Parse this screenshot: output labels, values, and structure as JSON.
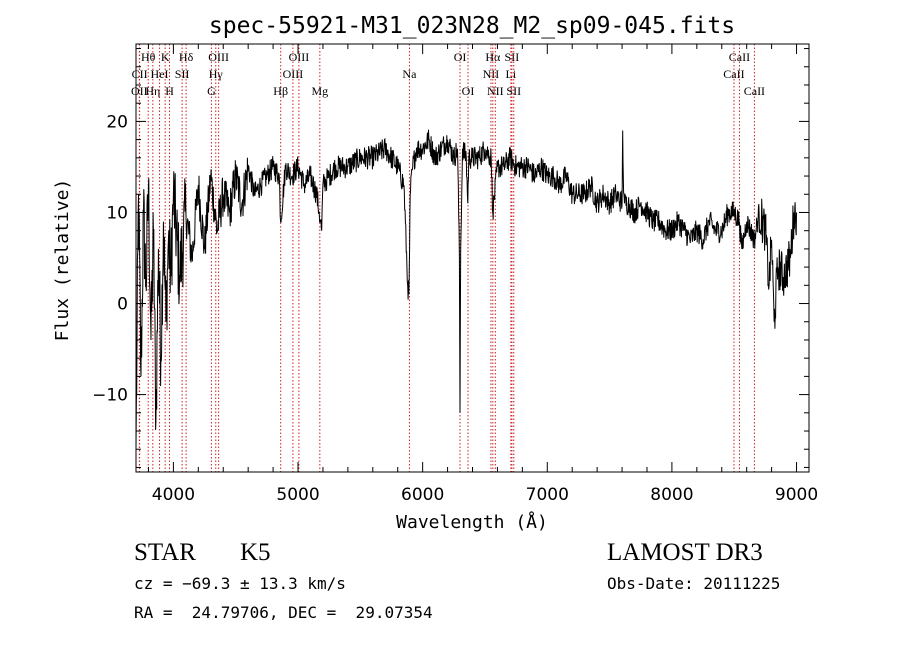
{
  "chart_data": {
    "type": "line",
    "title": "spec-55921-M31_023N28_M2_sp09-045.fits",
    "xlabel": "Wavelength (Å)",
    "ylabel": "Flux (relative)",
    "xlim": [
      3700,
      9100
    ],
    "ylim": [
      -18.5,
      28.5
    ],
    "x_ticks": [
      4000,
      5000,
      6000,
      7000,
      8000,
      9000
    ],
    "x_tick_labels": [
      "4000",
      "5000",
      "6000",
      "7000",
      "8000",
      "9000"
    ],
    "y_ticks": [
      -10,
      0,
      10,
      20
    ],
    "y_tick_labels": [
      "−10",
      "0",
      "10",
      "20"
    ],
    "series": [
      {
        "name": "flux",
        "x": [
          3700,
          3720,
          3740,
          3760,
          3780,
          3800,
          3820,
          3840,
          3860,
          3880,
          3900,
          3920,
          3940,
          3960,
          3980,
          4000,
          4050,
          4100,
          4150,
          4200,
          4250,
          4300,
          4350,
          4400,
          4450,
          4500,
          4550,
          4600,
          4650,
          4700,
          4750,
          4800,
          4850,
          4860,
          4900,
          4950,
          5000,
          5050,
          5100,
          5150,
          5170,
          5180,
          5190,
          5200,
          5250,
          5300,
          5400,
          5500,
          5600,
          5700,
          5800,
          5850,
          5880,
          5890,
          5895,
          5900,
          5920,
          5950,
          6000,
          6050,
          6100,
          6150,
          6200,
          6250,
          6280,
          6295,
          6300,
          6305,
          6320,
          6350,
          6362,
          6370,
          6400,
          6450,
          6500,
          6550,
          6563,
          6600,
          6650,
          6700,
          6750,
          6800,
          6850,
          6900,
          6950,
          7000,
          7050,
          7100,
          7150,
          7200,
          7250,
          7300,
          7350,
          7400,
          7450,
          7500,
          7550,
          7600,
          7605,
          7610,
          7615,
          7620,
          7650,
          7700,
          7750,
          7800,
          7850,
          7900,
          7950,
          8000,
          8050,
          8100,
          8150,
          8200,
          8250,
          8300,
          8350,
          8400,
          8450,
          8500,
          8542,
          8560,
          8600,
          8662,
          8700,
          8750,
          8780,
          8800,
          8820,
          8850,
          8900,
          8950,
          8980,
          9000
        ],
        "y": [
          -16,
          12,
          -8,
          10,
          2,
          13,
          -4,
          8,
          -13,
          6,
          -6,
          9,
          -2,
          7,
          3,
          12,
          3,
          10,
          5,
          13,
          6,
          14,
          8,
          12,
          10,
          14,
          11,
          15,
          12,
          13,
          14,
          15,
          14,
          9,
          15,
          14,
          15,
          13,
          14,
          12,
          10,
          9,
          8,
          13,
          14,
          15,
          15,
          16,
          16,
          17,
          15,
          13,
          2,
          1,
          6,
          12,
          15,
          17,
          17,
          18,
          16,
          17,
          18,
          16,
          17,
          5,
          -12,
          6,
          17,
          16,
          11,
          16,
          16,
          16,
          17,
          16,
          10,
          15,
          15,
          16,
          15,
          15,
          15,
          14,
          15,
          14,
          14,
          13,
          14,
          12,
          12,
          12,
          13,
          11,
          12,
          11,
          12,
          11,
          19,
          14,
          12,
          11,
          11,
          10,
          11,
          10,
          9,
          9,
          8,
          8,
          9,
          8,
          7,
          8,
          7,
          9,
          8,
          8,
          10,
          10,
          9,
          6,
          9,
          7,
          10,
          8,
          2,
          7,
          -2,
          4,
          3,
          5,
          10,
          10
        ]
      }
    ],
    "line_markers": [
      {
        "label": "Hθ",
        "x": 3798,
        "row": 0
      },
      {
        "label": "Hη",
        "x": 3835,
        "row": 2
      },
      {
        "label": "CII",
        "x": 3729,
        "row": 1
      },
      {
        "label": "OII",
        "x": 3727,
        "row": 2
      },
      {
        "label": "HeI",
        "x": 3889,
        "row": 1
      },
      {
        "label": "K",
        "x": 3934,
        "row": 0
      },
      {
        "label": "H",
        "x": 3969,
        "row": 2
      },
      {
        "label": "SII",
        "x": 4070,
        "row": 1
      },
      {
        "label": "Hδ",
        "x": 4102,
        "row": 0
      },
      {
        "label": "G",
        "x": 4305,
        "row": 2
      },
      {
        "label": "Hγ",
        "x": 4340,
        "row": 1
      },
      {
        "label": "OIII",
        "x": 4363,
        "row": 0
      },
      {
        "label": "Hβ",
        "x": 4861,
        "row": 2
      },
      {
        "label": "OIII",
        "x": 4959,
        "row": 1
      },
      {
        "label": "OIII",
        "x": 5007,
        "row": 0
      },
      {
        "label": "Mg",
        "x": 5175,
        "row": 2
      },
      {
        "label": "Na",
        "x": 5894,
        "row": 1
      },
      {
        "label": "OI",
        "x": 6300,
        "row": 0
      },
      {
        "label": "OI",
        "x": 6364,
        "row": 2
      },
      {
        "label": "NII",
        "x": 6548,
        "row": 1
      },
      {
        "label": "Hα",
        "x": 6563,
        "row": 0
      },
      {
        "label": "NII",
        "x": 6583,
        "row": 2
      },
      {
        "label": "Li",
        "x": 6708,
        "row": 1
      },
      {
        "label": "SII",
        "x": 6716,
        "row": 0
      },
      {
        "label": "SII",
        "x": 6731,
        "row": 2
      },
      {
        "label": "CaII",
        "x": 8498,
        "row": 1
      },
      {
        "label": "CaII",
        "x": 8542,
        "row": 0
      },
      {
        "label": "CaII",
        "x": 8662,
        "row": 2
      }
    ]
  },
  "info": {
    "object_class": "STAR",
    "subclass": "K5",
    "survey": "LAMOST DR3",
    "redshift": "cz = −69.3 ± 13.3 km/s",
    "obs_date": "Obs-Date: 20111225",
    "coords": "RA =  24.79706, DEC =  29.07354"
  }
}
